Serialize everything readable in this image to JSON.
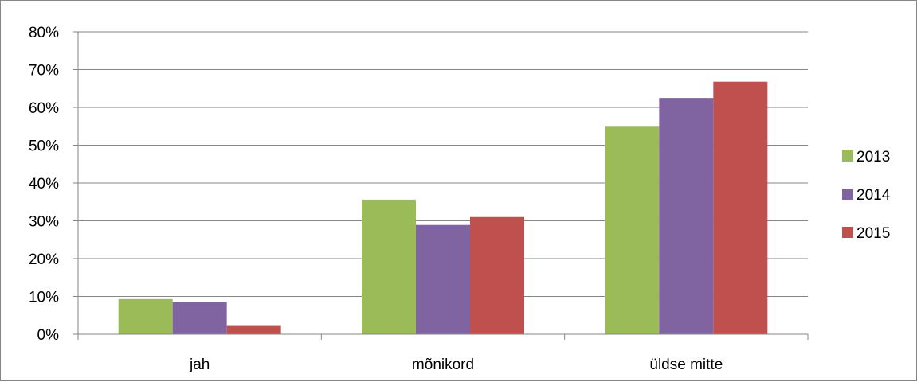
{
  "chart_data": {
    "type": "bar",
    "categories": [
      "jah",
      "mõnikord",
      "üldse mitte"
    ],
    "series": [
      {
        "name": "2013",
        "color": "#9BBB59",
        "values": [
          9.3,
          35.6,
          55.1
        ]
      },
      {
        "name": "2014",
        "color": "#8064A2",
        "values": [
          8.5,
          28.9,
          62.5
        ]
      },
      {
        "name": "2015",
        "color": "#C0504D",
        "values": [
          2.2,
          31.0,
          66.8
        ]
      }
    ],
    "y_ticks": [
      "0%",
      "10%",
      "20%",
      "30%",
      "40%",
      "50%",
      "60%",
      "70%",
      "80%"
    ],
    "ylim": [
      0,
      80
    ],
    "y_unit": "percent",
    "grid": true,
    "legend_position": "right"
  }
}
